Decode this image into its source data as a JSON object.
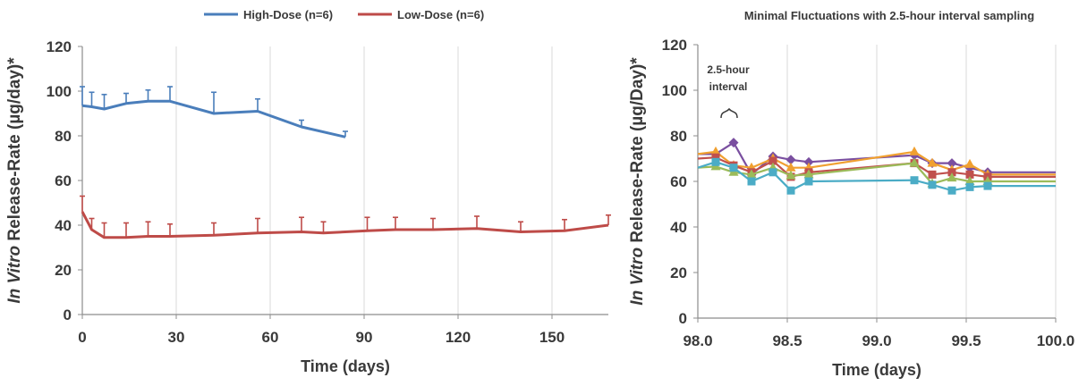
{
  "chart_data": [
    {
      "type": "line",
      "title": "",
      "legend_position": "top",
      "xlabel": "Time (days)",
      "ylabel_italic": "In Vitro",
      "ylabel_rest": " Release-Rate (µg/day)*",
      "xlim": [
        0,
        168
      ],
      "ylim": [
        0,
        120
      ],
      "xticks": [
        0,
        30,
        60,
        90,
        120,
        150
      ],
      "yticks": [
        0,
        20,
        40,
        60,
        80,
        100,
        120
      ],
      "grid": "vertical",
      "series": [
        {
          "name": "High-Dose (n=6)",
          "color": "#4a7ebb",
          "x": [
            0,
            3,
            7,
            14,
            21,
            28,
            42,
            56,
            70,
            84
          ],
          "y": [
            93.5,
            93,
            92,
            94.5,
            95.5,
            95.5,
            90,
            91,
            84,
            79.5
          ],
          "err": [
            8.5,
            6.5,
            6.5,
            4.5,
            5,
            6.5,
            9.5,
            5.5,
            3,
            2.5
          ]
        },
        {
          "name": "Low-Dose (n=6)",
          "color": "#be4b48",
          "x": [
            0,
            3,
            7,
            14,
            21,
            28,
            42,
            56,
            70,
            77,
            91,
            100,
            112,
            126,
            140,
            154,
            168
          ],
          "y": [
            46,
            38,
            34.5,
            34.5,
            35,
            35,
            35.5,
            36.5,
            37,
            36.5,
            37.5,
            38,
            38,
            38.5,
            37,
            37.5,
            40
          ],
          "err": [
            7,
            5,
            6.5,
            6.5,
            6.5,
            5.5,
            5.5,
            6.5,
            6.5,
            5,
            6,
            5.5,
            5,
            5.5,
            4.5,
            5,
            4.5
          ]
        }
      ]
    },
    {
      "type": "line",
      "title": "Minimal Fluctuations with 2.5-hour interval sampling",
      "xlabel": "Time (days)",
      "ylabel_italic": "In Vitro",
      "ylabel_rest": " Release-Rate (µg/Day)*",
      "xlim": [
        98.0,
        100.0
      ],
      "ylim": [
        0,
        120
      ],
      "xticks": [
        "98.0",
        "98.5",
        "99.0",
        "99.5",
        "100.0"
      ],
      "yticks": [
        0,
        20,
        40,
        60,
        80,
        100,
        120
      ],
      "grid": "vertical",
      "annotation": [
        "2.5-hour",
        "interval"
      ],
      "series": [
        {
          "color": "#7a4fa0",
          "marker": "diamond",
          "x": [
            98.0,
            98.1,
            98.2,
            98.3,
            98.42,
            98.52,
            98.62,
            99.21,
            99.31,
            99.42,
            99.52,
            99.62,
            100.0
          ],
          "y": [
            72,
            72,
            77,
            63,
            71,
            69.5,
            68.5,
            71.5,
            68,
            68,
            66,
            64,
            64
          ]
        },
        {
          "color": "#f0a030",
          "marker": "triangle",
          "x": [
            98.0,
            98.1,
            98.2,
            98.3,
            98.42,
            98.52,
            98.62,
            99.21,
            99.31,
            99.42,
            99.52,
            99.62,
            100.0
          ],
          "y": [
            72,
            73,
            67,
            66,
            70,
            66,
            66,
            73,
            68,
            65,
            67.5,
            63,
            63
          ]
        },
        {
          "color": "#c0504d",
          "marker": "square",
          "x": [
            98.0,
            98.1,
            98.2,
            98.3,
            98.42,
            98.52,
            98.62,
            99.21,
            99.31,
            99.42,
            99.52,
            99.62,
            100.0
          ],
          "y": [
            70,
            70.5,
            67,
            64,
            69,
            62,
            64,
            68,
            63,
            64,
            63,
            62,
            62
          ]
        },
        {
          "color": "#9bbb59",
          "marker": "triangle",
          "x": [
            98.0,
            98.1,
            98.2,
            98.3,
            98.42,
            98.52,
            98.62,
            99.21,
            99.31,
            99.42,
            99.52,
            99.62,
            100.0
          ],
          "y": [
            66,
            66.5,
            64,
            63,
            66,
            62.5,
            63,
            68,
            59,
            61.5,
            60,
            60,
            60
          ]
        },
        {
          "color": "#4bacc6",
          "marker": "square",
          "x": [
            98.0,
            98.1,
            98.2,
            98.3,
            98.42,
            98.52,
            98.62,
            99.21,
            99.31,
            99.42,
            99.52,
            99.62,
            100.0
          ],
          "y": [
            66,
            68.5,
            66,
            60,
            64,
            56,
            60,
            60.5,
            58.5,
            56,
            57.5,
            58,
            58
          ]
        }
      ]
    }
  ]
}
